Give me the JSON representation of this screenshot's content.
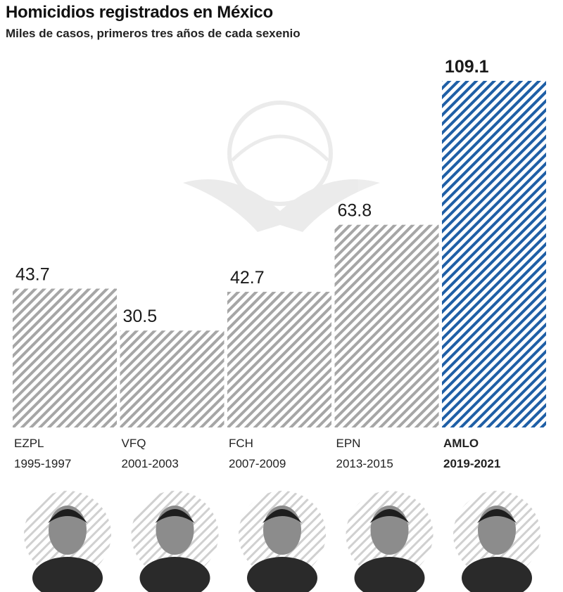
{
  "header": {
    "title": "Homicidios registrados en México",
    "subtitle": "Miles de casos, primeros tres años de cada sexenio"
  },
  "colors": {
    "hatch_gray": "#a6a6a6",
    "hatch_blue": "#1f5fa6",
    "text": "#1a1a1a"
  },
  "chart_data": {
    "type": "bar",
    "title": "Homicidios registrados en México",
    "subtitle": "Miles de casos, primeros tres años de cada sexenio",
    "categories": [
      "EZPL",
      "VFQ",
      "FCH",
      "EPN",
      "AMLO"
    ],
    "periods": [
      "1995-1997",
      "2001-2003",
      "2007-2009",
      "2013-2015",
      "2019-2021"
    ],
    "values": [
      43.7,
      30.5,
      42.7,
      63.8,
      109.1
    ],
    "value_labels": [
      "43.7",
      "30.5",
      "42.7",
      "63.8",
      "109.1"
    ],
    "highlight_index": 4,
    "ylim": [
      0,
      109.1
    ],
    "grid": false,
    "legend": "none",
    "xlabel": "",
    "ylabel": ""
  },
  "portraits": [
    {
      "name": "portrait-ezpl"
    },
    {
      "name": "portrait-vfq"
    },
    {
      "name": "portrait-fch"
    },
    {
      "name": "portrait-epn"
    },
    {
      "name": "portrait-amlo"
    }
  ]
}
